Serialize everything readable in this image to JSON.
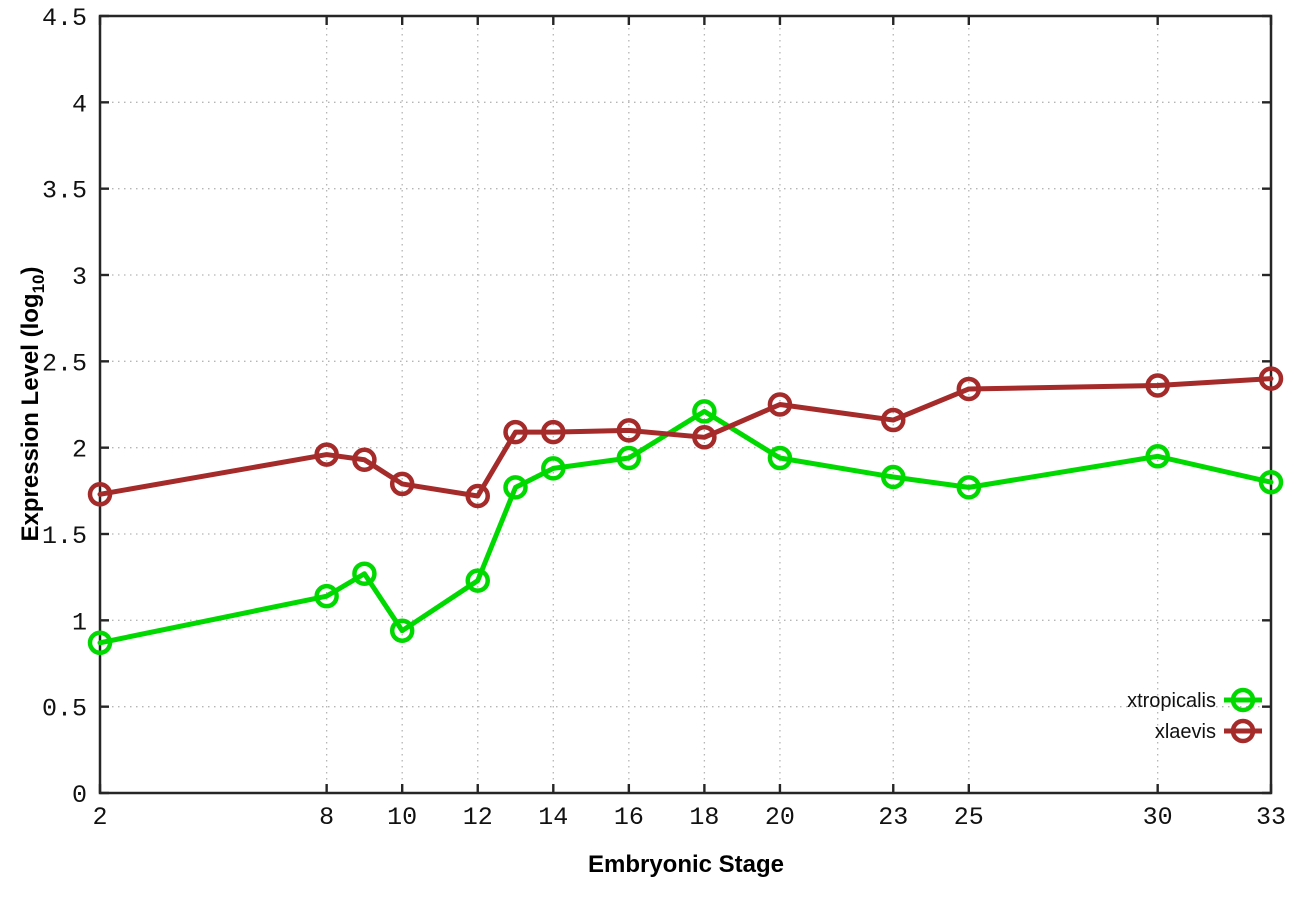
{
  "chart_data": {
    "type": "line",
    "title": "",
    "xlabel": "Embryonic Stage",
    "ylabel": "Expression Level (log10)",
    "ylabel_parts": {
      "main": "Expression Level (log",
      "sub": "10",
      "end": ")"
    },
    "xlim": [
      2,
      33
    ],
    "ylim": [
      0,
      4.5
    ],
    "grid": true,
    "legend_position": "bottom-right",
    "x": [
      2,
      8,
      9,
      10,
      12,
      13,
      14,
      16,
      18,
      20,
      23,
      25,
      30,
      33
    ],
    "xticks": [
      2,
      8,
      10,
      12,
      14,
      16,
      18,
      20,
      23,
      25,
      30,
      33
    ],
    "xtick_labels": [
      "2",
      "8",
      "10",
      "12",
      "14",
      "16",
      "18",
      "20",
      "23",
      "25",
      "30",
      "33"
    ],
    "yticks": [
      0,
      0.5,
      1,
      1.5,
      2,
      2.5,
      3,
      3.5,
      4,
      4.5
    ],
    "ytick_labels": [
      "0",
      "0.5",
      "1",
      "1.5",
      "2",
      "2.5",
      "3",
      "3.5",
      "4",
      "4.5"
    ],
    "series": [
      {
        "name": "xtropicalis",
        "color": "#00d900",
        "marker": "open-circle",
        "values": [
          0.87,
          1.14,
          1.27,
          0.94,
          1.23,
          1.77,
          1.88,
          1.94,
          2.21,
          1.94,
          1.83,
          1.77,
          1.95,
          1.8
        ]
      },
      {
        "name": "xlaevis",
        "color": "#a52a2a",
        "marker": "open-circle",
        "values": [
          1.73,
          1.96,
          1.93,
          1.79,
          1.72,
          2.09,
          2.09,
          2.1,
          2.06,
          2.25,
          2.16,
          2.34,
          2.36,
          2.4
        ]
      }
    ],
    "colors": {
      "grid": "#b5b5b5",
      "border": "#262626",
      "text": "#111111"
    }
  }
}
